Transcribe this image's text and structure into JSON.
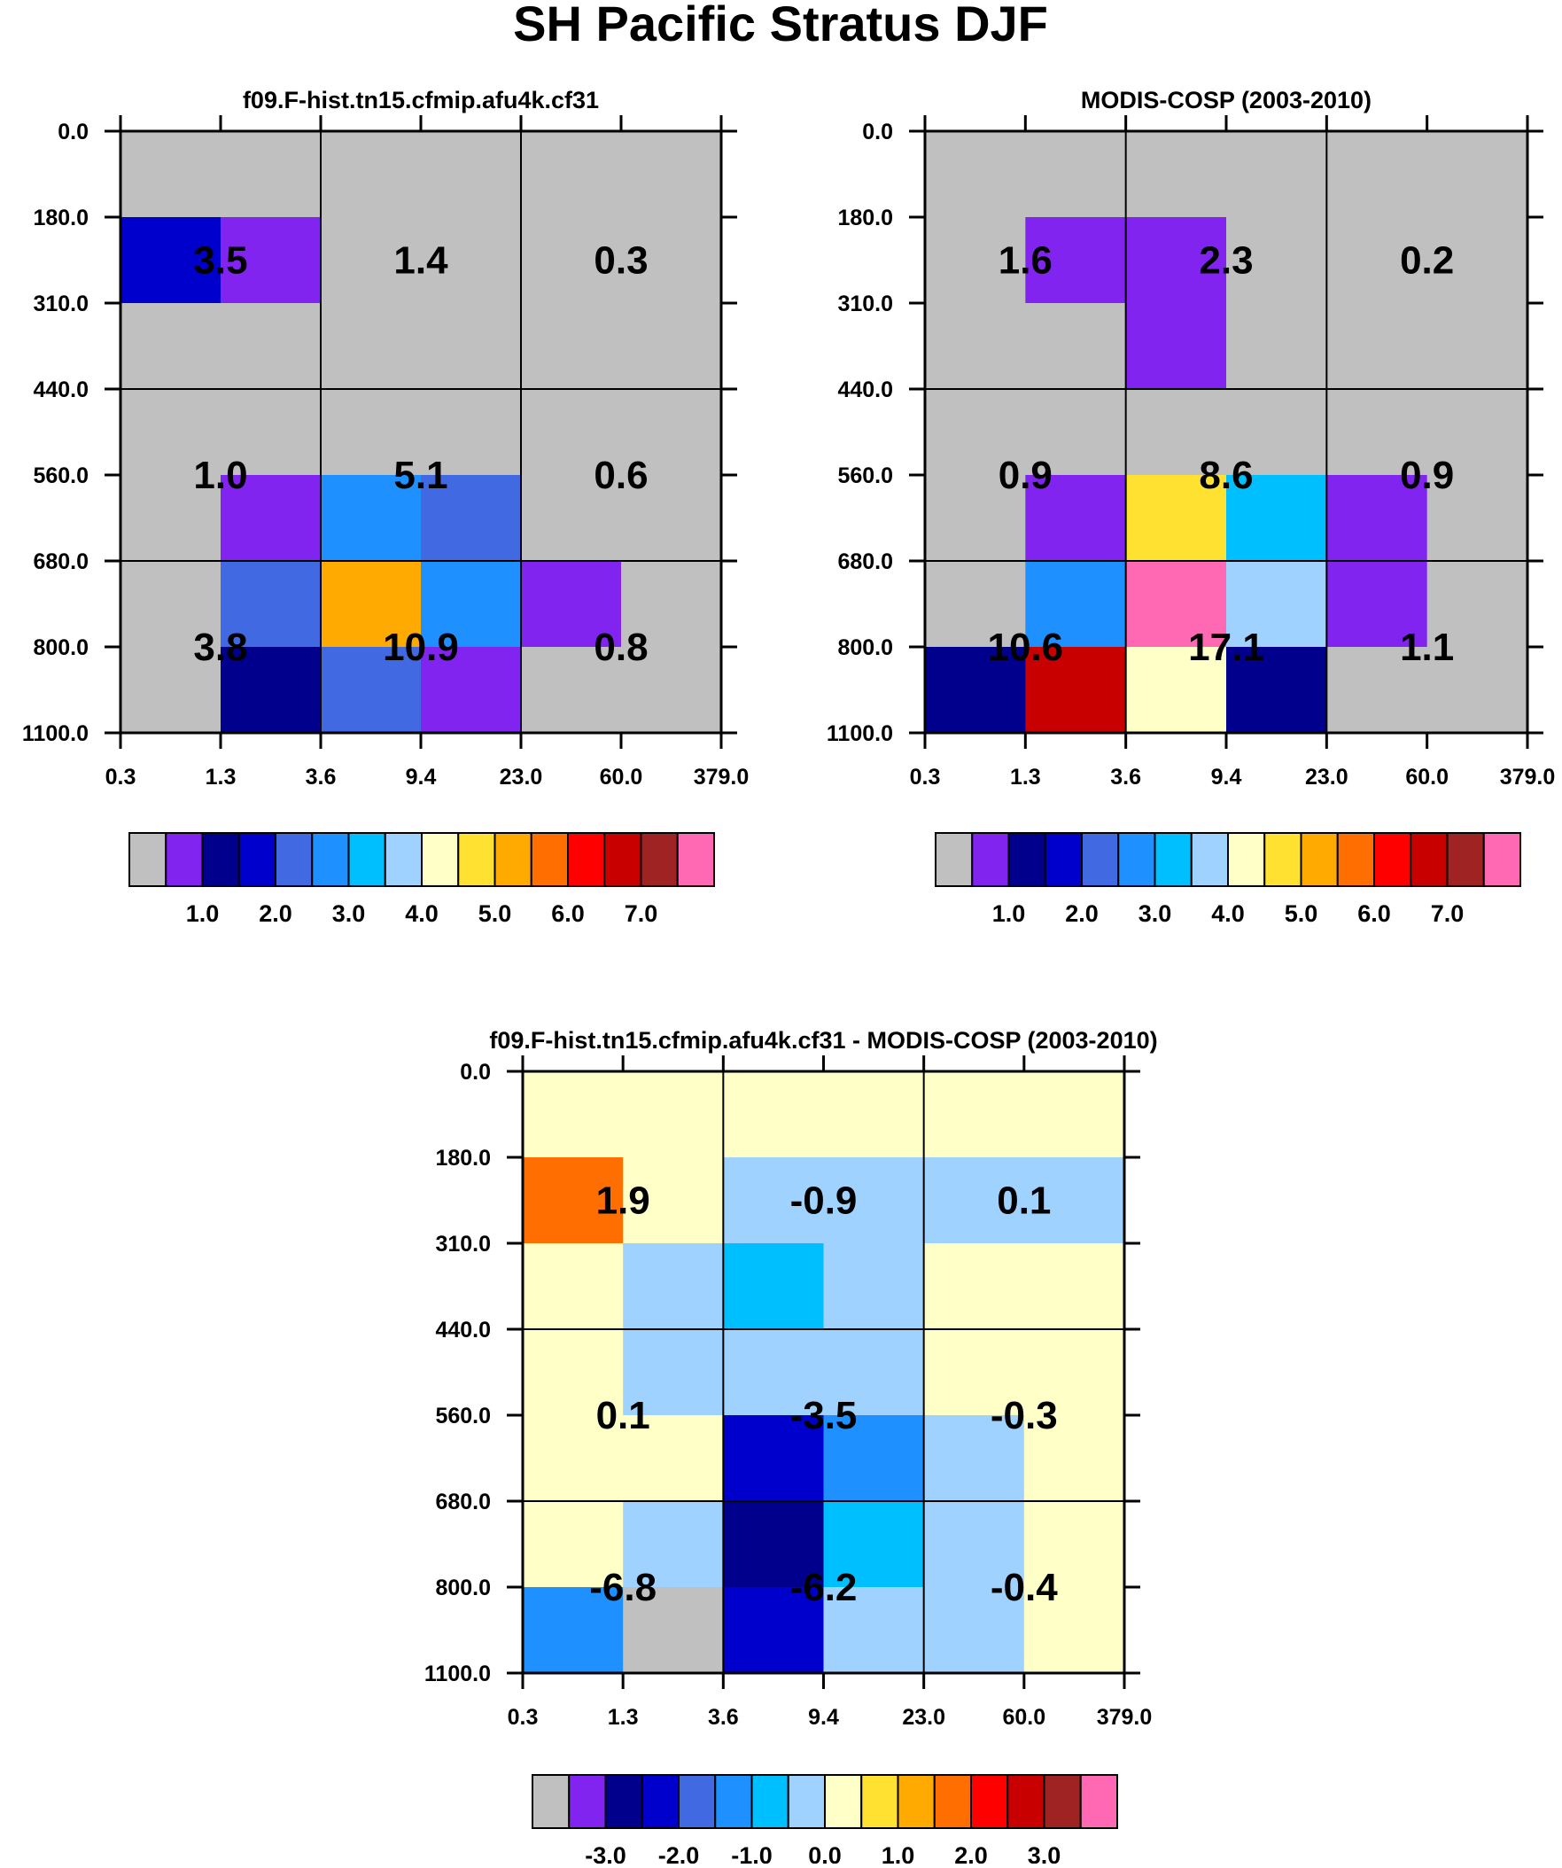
{
  "figure_title": "SH Pacific Stratus DJF",
  "chart_data": [
    {
      "type": "heatmap",
      "title": "f09.F-hist.tn15.cfmip.afu4k.cf31",
      "x_tick_labels": [
        "0.3",
        "1.3",
        "3.6",
        "9.4",
        "23.0",
        "60.0",
        "379.0"
      ],
      "y_tick_labels": [
        "0.0",
        "180.0",
        "310.0",
        "440.0",
        "560.0",
        "680.0",
        "800.0",
        "1100.0"
      ],
      "cells": [
        [
          "gray",
          "gray",
          "gray",
          "gray",
          "gray",
          "gray"
        ],
        [
          "blue",
          "purple",
          "gray",
          "gray",
          "gray",
          "gray"
        ],
        [
          "gray",
          "gray",
          "gray",
          "gray",
          "gray",
          "gray"
        ],
        [
          "gray",
          "gray",
          "gray",
          "gray",
          "gray",
          "gray"
        ],
        [
          "gray",
          "purple",
          "dodger",
          "royal",
          "gray",
          "gray"
        ],
        [
          "gray",
          "royal",
          "orange",
          "dodger",
          "purple",
          "gray"
        ],
        [
          "gray",
          "navy",
          "royal",
          "purple",
          "gray",
          "gray"
        ]
      ],
      "region_values": [
        "3.5",
        "1.4",
        "0.3",
        "1.0",
        "5.1",
        "0.6",
        "3.8",
        "10.9",
        "0.8"
      ],
      "colorbar": {
        "colors": [
          "#c0c0c0",
          "#8224f0",
          "#00008c",
          "#0000cd",
          "#4169e1",
          "#1e90ff",
          "#00bfff",
          "#a0d2ff",
          "#ffffc8",
          "#ffe132",
          "#ffaa00",
          "#ff6e00",
          "#ff0000",
          "#c80000",
          "#a02323",
          "#ff69b4"
        ],
        "labels": [
          "1.0",
          "2.0",
          "3.0",
          "4.0",
          "5.0",
          "6.0",
          "7.0"
        ]
      }
    },
    {
      "type": "heatmap",
      "title": "MODIS-COSP (2003-2010)",
      "x_tick_labels": [
        "0.3",
        "1.3",
        "3.6",
        "9.4",
        "23.0",
        "60.0",
        "379.0"
      ],
      "y_tick_labels": [
        "0.0",
        "180.0",
        "310.0",
        "440.0",
        "560.0",
        "680.0",
        "800.0",
        "1100.0"
      ],
      "cells": [
        [
          "gray",
          "gray",
          "gray",
          "gray",
          "gray",
          "gray"
        ],
        [
          "gray",
          "purple",
          "purple",
          "gray",
          "gray",
          "gray"
        ],
        [
          "gray",
          "gray",
          "purple",
          "gray",
          "gray",
          "gray"
        ],
        [
          "gray",
          "gray",
          "gray",
          "gray",
          "gray",
          "gray"
        ],
        [
          "gray",
          "purple",
          "gold",
          "deepsky",
          "purple",
          "gray"
        ],
        [
          "gray",
          "dodger",
          "pink",
          "lightblue",
          "purple",
          "gray"
        ],
        [
          "navy",
          "darkred",
          "cream",
          "navy",
          "gray",
          "gray"
        ]
      ],
      "region_values": [
        "1.6",
        "2.3",
        "0.2",
        "0.9",
        "8.6",
        "0.9",
        "10.6",
        "17.1",
        "1.1"
      ],
      "colorbar": {
        "colors": [
          "#c0c0c0",
          "#8224f0",
          "#00008c",
          "#0000cd",
          "#4169e1",
          "#1e90ff",
          "#00bfff",
          "#a0d2ff",
          "#ffffc8",
          "#ffe132",
          "#ffaa00",
          "#ff6e00",
          "#ff0000",
          "#c80000",
          "#a02323",
          "#ff69b4"
        ],
        "labels": [
          "1.0",
          "2.0",
          "3.0",
          "4.0",
          "5.0",
          "6.0",
          "7.0"
        ]
      }
    },
    {
      "type": "heatmap",
      "title": "f09.F-hist.tn15.cfmip.afu4k.cf31 - MODIS-COSP (2003-2010)",
      "x_tick_labels": [
        "0.3",
        "1.3",
        "3.6",
        "9.4",
        "23.0",
        "60.0",
        "379.0"
      ],
      "y_tick_labels": [
        "0.0",
        "180.0",
        "310.0",
        "440.0",
        "560.0",
        "680.0",
        "800.0",
        "1100.0"
      ],
      "cells": [
        [
          "cream",
          "cream",
          "cream",
          "cream",
          "cream",
          "cream"
        ],
        [
          "orange2",
          "cream",
          "lightblue",
          "lightblue",
          "lightblue",
          "lightblue"
        ],
        [
          "cream",
          "lightblue",
          "deepsky",
          "lightblue",
          "cream",
          "cream"
        ],
        [
          "cream",
          "lightblue",
          "lightblue",
          "lightblue",
          "cream",
          "cream"
        ],
        [
          "cream",
          "cream",
          "blue",
          "dodger",
          "lightblue",
          "cream"
        ],
        [
          "cream",
          "lightblue",
          "navy",
          "deepsky",
          "lightblue",
          "cream"
        ],
        [
          "dodger",
          "gray",
          "blue",
          "lightblue",
          "lightblue",
          "cream"
        ]
      ],
      "region_values": [
        "1.9",
        "-0.9",
        "0.1",
        "0.1",
        "-3.5",
        "-0.3",
        "-6.8",
        "-6.2",
        "-0.4"
      ],
      "colorbar": {
        "colors": [
          "#c0c0c0",
          "#8224f0",
          "#00008c",
          "#0000cd",
          "#4169e1",
          "#1e90ff",
          "#00bfff",
          "#a0d2ff",
          "#ffffc8",
          "#ffe132",
          "#ffaa00",
          "#ff6e00",
          "#ff0000",
          "#c80000",
          "#a02323",
          "#ff69b4"
        ],
        "labels": [
          "-3.0",
          "-2.0",
          "-1.0",
          "0.0",
          "1.0",
          "2.0",
          "3.0"
        ]
      }
    }
  ],
  "palette": {
    "gray": "#c0c0c0",
    "purple": "#8224f0",
    "navy": "#00008c",
    "blue": "#0000cd",
    "royal": "#4169e1",
    "dodger": "#1e90ff",
    "deepsky": "#00bfff",
    "lightblue": "#a0d2ff",
    "cream": "#ffffc8",
    "gold": "#ffe132",
    "orange": "#ffaa00",
    "orange2": "#ff6e00",
    "red": "#ff0000",
    "darkred": "#c80000",
    "brown": "#a02323",
    "pink": "#ff69b4"
  }
}
